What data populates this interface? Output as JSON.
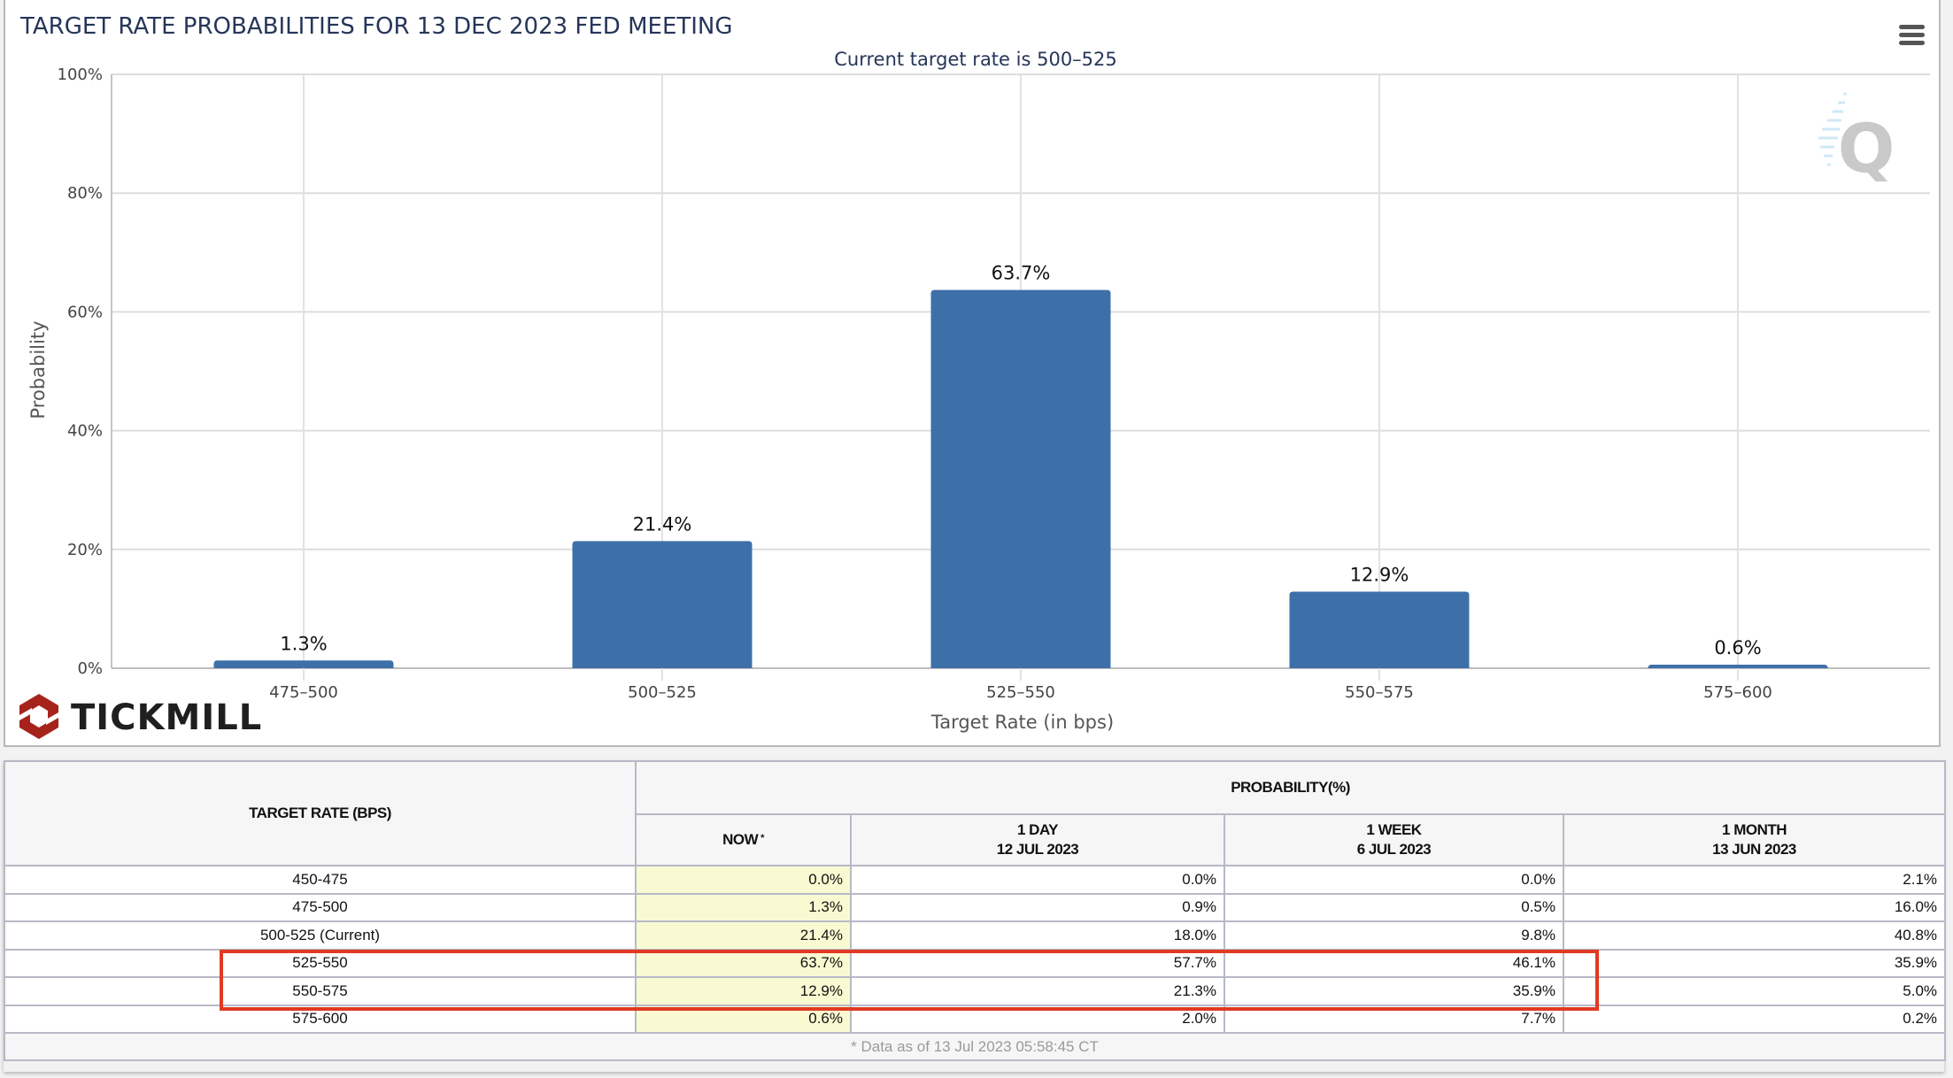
{
  "chart_data": {
    "type": "bar",
    "title": "TARGET RATE PROBABILITIES FOR 13 DEC 2023 FED MEETING",
    "subtitle": "Current target rate is 500–525",
    "xlabel": "Target Rate (in bps)",
    "ylabel": "Probability",
    "categories": [
      "475–500",
      "500–525",
      "525–550",
      "550–575",
      "575–600"
    ],
    "values": [
      1.3,
      21.4,
      63.7,
      12.9,
      0.6
    ],
    "data_labels": [
      "1.3%",
      "21.4%",
      "63.7%",
      "12.9%",
      "0.6%"
    ],
    "ylim": [
      0,
      100
    ],
    "yticks": [
      0,
      20,
      40,
      60,
      80,
      100
    ],
    "ytick_labels": [
      "0%",
      "20%",
      "40%",
      "60%",
      "80%",
      "100%"
    ],
    "grid": true,
    "legend": "none",
    "bar_color": "#3d70a9"
  },
  "branding": {
    "logo_text": "TICKMILL",
    "logo_color": "#a6231c",
    "watermark_letter": "Q",
    "menu_icon": "hamburger-menu-icon"
  },
  "table": {
    "header_rate": "TARGET RATE (BPS)",
    "header_probability": "PROBABILITY(%)",
    "columns": [
      {
        "label": "NOW",
        "note": "*",
        "date": ""
      },
      {
        "label": "1 DAY",
        "date": "12 JUL 2023"
      },
      {
        "label": "1 WEEK",
        "date": "6 JUL 2023"
      },
      {
        "label": "1 MONTH",
        "date": "13 JUN 2023"
      }
    ],
    "rows": [
      {
        "rate": "450-475",
        "now": "0.0%",
        "day": "0.0%",
        "week": "0.0%",
        "month": "2.1%"
      },
      {
        "rate": "475-500",
        "now": "1.3%",
        "day": "0.9%",
        "week": "0.5%",
        "month": "16.0%"
      },
      {
        "rate": "500-525 (Current)",
        "now": "21.4%",
        "day": "18.0%",
        "week": "9.8%",
        "month": "40.8%"
      },
      {
        "rate": "525-550",
        "now": "63.7%",
        "day": "57.7%",
        "week": "46.1%",
        "month": "35.9%"
      },
      {
        "rate": "550-575",
        "now": "12.9%",
        "day": "21.3%",
        "week": "35.9%",
        "month": "5.0%"
      },
      {
        "rate": "575-600",
        "now": "0.6%",
        "day": "2.0%",
        "week": "7.7%",
        "month": "0.2%"
      }
    ],
    "footnote": "* Data as of 13 Jul 2023 05:58:45 CT",
    "highlight_color": "#e03a22",
    "now_column_color": "#fafad2"
  }
}
